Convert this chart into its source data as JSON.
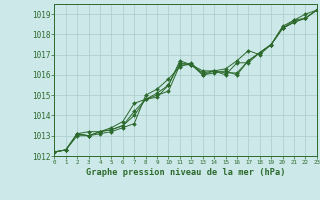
{
  "title": "Graphe pression niveau de la mer (hPa)",
  "bg_color": "#cce8e8",
  "line_color": "#2d6a2d",
  "grid_color": "#aacccc",
  "label_color": "#2d6a2d",
  "x_values": [
    0,
    1,
    2,
    3,
    4,
    5,
    6,
    7,
    8,
    9,
    10,
    11,
    12,
    13,
    14,
    15,
    16,
    17,
    18,
    19,
    20,
    21,
    22,
    23
  ],
  "series1": [
    1012.2,
    1012.3,
    1013.0,
    1013.0,
    1013.2,
    1013.3,
    1013.5,
    1014.0,
    1014.8,
    1014.9,
    1015.5,
    1016.7,
    1016.5,
    1016.1,
    1016.2,
    1016.3,
    1016.7,
    1017.2,
    1017.0,
    1017.5,
    1018.4,
    1018.7,
    1019.0,
    1019.2
  ],
  "series2": [
    1012.2,
    1012.3,
    1013.1,
    1013.0,
    1013.1,
    1013.2,
    1013.4,
    1013.6,
    1015.0,
    1015.3,
    1015.8,
    1016.4,
    1016.6,
    1016.0,
    1016.1,
    1016.2,
    1016.0,
    1016.7,
    1017.1,
    1017.5,
    1018.3,
    1018.6,
    1018.8,
    1019.2
  ],
  "series3": [
    1012.2,
    1012.3,
    1013.1,
    1013.2,
    1013.2,
    1013.4,
    1013.7,
    1014.6,
    1014.8,
    1015.0,
    1015.2,
    1016.5,
    1016.5,
    1016.2,
    1016.2,
    1016.1,
    1016.1,
    1016.7,
    1017.1,
    1017.5,
    1018.3,
    1018.6,
    1018.8,
    1019.2
  ],
  "series4": [
    1012.2,
    1012.3,
    1013.1,
    1013.0,
    1013.2,
    1013.3,
    1013.5,
    1014.2,
    1014.8,
    1015.1,
    1015.5,
    1016.6,
    1016.5,
    1016.0,
    1016.2,
    1016.0,
    1016.6,
    1016.6,
    1017.1,
    1017.5,
    1018.3,
    1018.7,
    1018.8,
    1019.2
  ],
  "ylim": [
    1012.0,
    1019.5
  ],
  "xlim": [
    0,
    23
  ],
  "yticks": [
    1012,
    1013,
    1014,
    1015,
    1016,
    1017,
    1018,
    1019
  ],
  "xticks": [
    0,
    1,
    2,
    3,
    4,
    5,
    6,
    7,
    8,
    9,
    10,
    11,
    12,
    13,
    14,
    15,
    16,
    17,
    18,
    19,
    20,
    21,
    22,
    23
  ],
  "ytick_fontsize": 5.5,
  "xtick_fontsize": 4.2,
  "xlabel_fontsize": 6.2,
  "marker_size": 2.0,
  "line_width": 0.7
}
